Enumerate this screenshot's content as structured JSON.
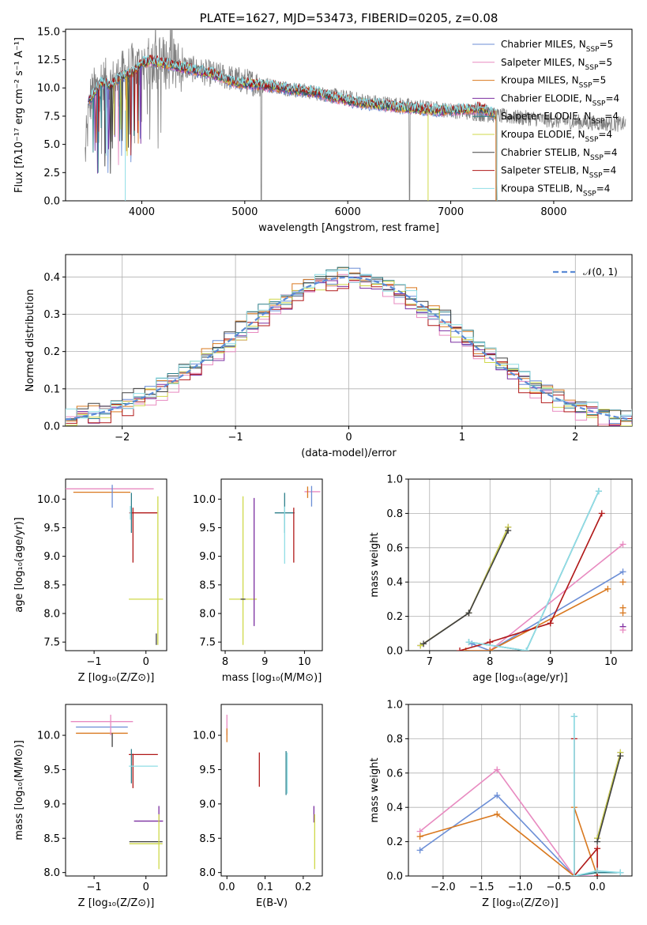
{
  "chart_data": [
    {
      "id": "spectrum",
      "type": "line",
      "title": "PLATE=1627, MJD=53473, FIBERID=0205, z=0.08",
      "xlabel": "wavelength [Angstrom, rest frame]",
      "ylabel": "Flux [fλ10⁻¹⁷ erg cm⁻² s⁻¹ A⁻¹]",
      "xlim": [
        3260,
        8760
      ],
      "ylim": [
        0,
        15.2
      ],
      "xticks": [
        4000,
        5000,
        6000,
        7000,
        8000
      ],
      "yticks": [
        0.0,
        2.5,
        5.0,
        7.5,
        10.0,
        12.5,
        15.0
      ],
      "ytick_labels": [
        "0.0",
        "2.5",
        "5.0",
        "7.5",
        "10.0",
        "12.5",
        "15.0"
      ],
      "legend_position": "right",
      "legend": [
        {
          "name": "Chabrier MILES, N",
          "sub": "SSP",
          "suffix": "=5",
          "color": "#6b8ed6"
        },
        {
          "name": "Salpeter MILES, N",
          "sub": "SSP",
          "suffix": "=5",
          "color": "#e88ac0"
        },
        {
          "name": "Kroupa MILES, N",
          "sub": "SSP",
          "suffix": "=5",
          "color": "#d9781e"
        },
        {
          "name": "Chabrier ELODIE, N",
          "sub": "SSP",
          "suffix": "=4",
          "color": "#7b2fa0"
        },
        {
          "name": "Salpeter ELODIE, N",
          "sub": "SSP",
          "suffix": "=4",
          "color": "#2d7f8a"
        },
        {
          "name": "Kroupa ELODIE, N",
          "sub": "SSP",
          "suffix": "=4",
          "color": "#cfd84a"
        },
        {
          "name": "Chabrier STELIB, N",
          "sub": "SSP",
          "suffix": "=4",
          "color": "#404040"
        },
        {
          "name": "Salpeter STELIB, N",
          "sub": "SSP",
          "suffix": "=4",
          "color": "#b01818"
        },
        {
          "name": "Kroupa STELIB, N",
          "sub": "SSP",
          "suffix": "=4",
          "color": "#8fdde6"
        }
      ],
      "model_envelope": {
        "x": [
          3500,
          3600,
          3700,
          3800,
          3900,
          4000,
          4100,
          4300,
          4500,
          4700,
          4900,
          5100,
          5300,
          5500,
          5700,
          5900,
          6100,
          6300,
          6500,
          6700,
          6900,
          7100,
          7300,
          7450
        ],
        "y": [
          9.0,
          10.5,
          10.2,
          11.0,
          11.3,
          12.2,
          12.4,
          12.0,
          11.6,
          11.2,
          10.5,
          10.3,
          10.1,
          9.8,
          9.6,
          9.1,
          8.7,
          8.5,
          8.3,
          8.1,
          8.0,
          8.1,
          8.2,
          7.5
        ]
      },
      "data_trend": {
        "x": [
          3450,
          3500,
          3600,
          3700,
          3800,
          3900,
          4000,
          4200,
          4400,
          4600,
          4800,
          5000,
          5200,
          5400,
          5600,
          5800,
          6000,
          6200,
          6400,
          6600,
          6800,
          7000,
          7200,
          7400,
          7600,
          7800,
          8000,
          8200,
          8400,
          8600,
          8700
        ],
        "y": [
          4.0,
          9.0,
          10.4,
          10.2,
          10.9,
          11.6,
          12.0,
          12.3,
          11.9,
          11.4,
          11.0,
          10.6,
          10.3,
          10.0,
          9.7,
          9.4,
          9.1,
          8.8,
          8.6,
          8.4,
          8.2,
          8.0,
          7.8,
          7.6,
          7.4,
          7.3,
          7.1,
          7.0,
          6.9,
          6.8,
          6.8
        ]
      }
    },
    {
      "id": "residuals",
      "type": "line",
      "xlabel": "(data-model)/error",
      "ylabel": "Normed distribution",
      "xlim": [
        -2.5,
        2.5
      ],
      "ylim": [
        0,
        0.46
      ],
      "xticks": [
        -2,
        -1,
        0,
        1,
        2
      ],
      "xtick_labels": [
        "−2",
        "−1",
        "0",
        "1",
        "2"
      ],
      "yticks": [
        0.0,
        0.1,
        0.2,
        0.3,
        0.4
      ],
      "ytick_labels": [
        "0.0",
        "0.1",
        "0.2",
        "0.3",
        "0.4"
      ],
      "grid": true,
      "legend_position": "top-right",
      "reference_curve": {
        "name": "𝒩(0, 1)",
        "color": "#5b8bd6",
        "style": "dashed"
      },
      "histogram_series": [
        {
          "color": "#6b8ed6",
          "shift": 0.004
        },
        {
          "color": "#e88ac0",
          "shift": -0.012
        },
        {
          "color": "#d9781e",
          "shift": 0.01
        },
        {
          "color": "#7b2fa0",
          "shift": -0.008
        },
        {
          "color": "#2d7f8a",
          "shift": 0.006
        },
        {
          "color": "#cfd84a",
          "shift": -0.004
        },
        {
          "color": "#404040",
          "shift": 0.012
        },
        {
          "color": "#b01818",
          "shift": -0.01
        },
        {
          "color": "#8fdde6",
          "shift": 0.008
        }
      ]
    },
    {
      "id": "age-vs-Z",
      "type": "scatter",
      "xlabel": "Z [log₁₀(Z/Z⊙)]",
      "ylabel": "age  [log₁₀(age/yr)]",
      "xlim": [
        -1.55,
        0.4
      ],
      "ylim": [
        7.35,
        10.35
      ],
      "xticks": [
        -1,
        0
      ],
      "xtick_labels": [
        "−1",
        "0"
      ],
      "yticks": [
        7.5,
        8.0,
        8.5,
        9.0,
        9.5,
        10.0
      ],
      "ytick_labels": [
        "7.5",
        "8.0",
        "8.5",
        "9.0",
        "9.5",
        "10.0"
      ],
      "points": [
        {
          "x": -0.7,
          "y": 10.18,
          "ex": 0.85,
          "ey": 0.0,
          "color": "#e88ac0"
        },
        {
          "x": -0.85,
          "y": 10.12,
          "ex": 0.55,
          "ey": 0.0,
          "color": "#d9781e"
        },
        {
          "x": -0.65,
          "y": 10.05,
          "ex": 0.0,
          "ey": 0.2,
          "color": "#6b8ed6"
        },
        {
          "x": -0.05,
          "y": 9.76,
          "ex": 0.27,
          "ey": 0.0,
          "color": "#b01818"
        },
        {
          "x": -0.25,
          "y": 9.37,
          "ex": 0.0,
          "ey": 0.48,
          "color": "#b01818"
        },
        {
          "x": -0.28,
          "y": 9.76,
          "ex": 0.0,
          "ey": 0.35,
          "color": "#2d7f8a"
        },
        {
          "x": -0.3,
          "y": 9.76,
          "ex": 0.0,
          "ey": 0.12,
          "color": "#8fdde6"
        },
        {
          "x": 0.23,
          "y": 8.75,
          "ex": 0.0,
          "ey": 1.3,
          "color": "#cfd84a"
        },
        {
          "x": 0.0,
          "y": 8.25,
          "ex": 0.33,
          "ey": 0.0,
          "color": "#cfd84a"
        },
        {
          "x": 0.2,
          "y": 7.55,
          "ex": 0.0,
          "ey": 0.1,
          "color": "#404040"
        }
      ]
    },
    {
      "id": "age-vs-mass",
      "type": "scatter",
      "xlabel": "mass [log₁₀(M/M⊙)]",
      "xlim": [
        7.9,
        10.45
      ],
      "ylim": [
        7.35,
        10.35
      ],
      "xticks": [
        8,
        9,
        10
      ],
      "yticks": [
        7.5,
        8.0,
        8.5,
        9.0,
        9.5,
        10.0
      ],
      "ytick_labels": [
        "7.5",
        "8.0",
        "8.5",
        "9.0",
        "9.5",
        "10.0"
      ],
      "points": [
        {
          "x": 8.45,
          "y": 8.75,
          "ex": 0.0,
          "ey": 1.3,
          "color": "#cfd84a"
        },
        {
          "x": 8.45,
          "y": 8.25,
          "ex": 0.35,
          "ey": 0.0,
          "color": "#cfd84a"
        },
        {
          "x": 8.45,
          "y": 8.25,
          "ex": 0.0,
          "ey": 0.0,
          "color": "#404040"
        },
        {
          "x": 8.73,
          "y": 8.9,
          "ex": 0.0,
          "ey": 1.12,
          "color": "#7b2fa0"
        },
        {
          "x": 9.5,
          "y": 9.76,
          "ex": 0.25,
          "ey": 0.0,
          "color": "#2d7f8a"
        },
        {
          "x": 9.5,
          "y": 9.76,
          "ex": 0.0,
          "ey": 0.35,
          "color": "#2d7f8a"
        },
        {
          "x": 9.5,
          "y": 9.37,
          "ex": 0.0,
          "ey": 0.5,
          "color": "#8fdde6"
        },
        {
          "x": 9.73,
          "y": 9.37,
          "ex": 0.0,
          "ey": 0.48,
          "color": "#b01818"
        },
        {
          "x": 10.2,
          "y": 10.13,
          "ex": 0.2,
          "ey": 0.0,
          "color": "#e88ac0"
        },
        {
          "x": 10.18,
          "y": 10.05,
          "ex": 0.0,
          "ey": 0.18,
          "color": "#6b8ed6"
        },
        {
          "x": 10.08,
          "y": 10.12,
          "ex": 0.0,
          "ey": 0.1,
          "color": "#d9781e"
        }
      ]
    },
    {
      "id": "weight-vs-age",
      "type": "line",
      "xlabel": "age  [log₁₀(age/yr)]",
      "ylabel": "mass weight",
      "xlim": [
        6.65,
        10.35
      ],
      "ylim": [
        0,
        1.0
      ],
      "xticks": [
        7,
        8,
        9,
        10
      ],
      "yticks": [
        0.0,
        0.2,
        0.4,
        0.6,
        0.8,
        1.0
      ],
      "ytick_labels": [
        "0.0",
        "0.2",
        "0.4",
        "0.6",
        "0.8",
        "1.0"
      ],
      "grid": true,
      "series": [
        {
          "color": "#6b8ed6",
          "x": [
            7.7,
            8.0,
            10.2
          ],
          "y": [
            0.04,
            0.0,
            0.46
          ]
        },
        {
          "color": "#e88ac0",
          "x": [
            7.6,
            8.0,
            10.2
          ],
          "y": [
            0.0,
            0.0,
            0.62
          ]
        },
        {
          "color": "#d9781e",
          "x": [
            7.6,
            8.0,
            9.95
          ],
          "y": [
            0.0,
            0.0,
            0.36
          ]
        },
        {
          "color": "#7b2fa0",
          "x": [
            6.85,
            7.65,
            8.3
          ],
          "y": [
            0.03,
            0.22,
            0.72
          ]
        },
        {
          "color": "#2d7f8a",
          "x": [
            7.65,
            8.6,
            9.8
          ],
          "y": [
            0.05,
            0.0,
            0.93
          ]
        },
        {
          "color": "#cfd84a",
          "x": [
            6.85,
            7.65,
            8.3
          ],
          "y": [
            0.03,
            0.22,
            0.72
          ]
        },
        {
          "color": "#404040",
          "x": [
            6.9,
            7.65,
            8.3
          ],
          "y": [
            0.04,
            0.22,
            0.7
          ]
        },
        {
          "color": "#b01818",
          "x": [
            7.5,
            8.0,
            9.0,
            9.85
          ],
          "y": [
            0.0,
            0.05,
            0.16,
            0.8
          ]
        },
        {
          "color": "#8fdde6",
          "x": [
            7.65,
            8.6,
            9.8
          ],
          "y": [
            0.05,
            0.0,
            0.93
          ]
        }
      ],
      "markers": [
        {
          "x": 10.2,
          "y": 0.25,
          "color": "#d9781e"
        },
        {
          "x": 10.2,
          "y": 0.4,
          "color": "#d9781e"
        },
        {
          "x": 10.2,
          "y": 0.14,
          "color": "#7b2fa0"
        },
        {
          "x": 10.2,
          "y": 0.12,
          "color": "#e88ac0"
        },
        {
          "x": 10.2,
          "y": 0.22,
          "color": "#d9781e"
        }
      ]
    },
    {
      "id": "mass-vs-Z",
      "type": "scatter",
      "xlabel": "Z [log₁₀(Z/Z⊙)]",
      "ylabel": "mass [log₁₀(M/M⊙)]",
      "xlim": [
        -1.55,
        0.4
      ],
      "ylim": [
        7.95,
        10.45
      ],
      "xticks": [
        -1,
        0
      ],
      "xtick_labels": [
        "−1",
        "0"
      ],
      "yticks": [
        8.0,
        8.5,
        9.0,
        9.5,
        10.0
      ],
      "ytick_labels": [
        "8.0",
        "8.5",
        "9.0",
        "9.5",
        "10.0"
      ],
      "points": [
        {
          "x": -0.85,
          "y": 10.2,
          "ex": 0.6,
          "ey": 0.0,
          "color": "#e88ac0"
        },
        {
          "x": -0.85,
          "y": 10.12,
          "ex": 0.5,
          "ey": 0.0,
          "color": "#6b8ed6"
        },
        {
          "x": -0.85,
          "y": 10.03,
          "ex": 0.5,
          "ey": 0.0,
          "color": "#d9781e"
        },
        {
          "x": -0.68,
          "y": 10.15,
          "ex": 0.0,
          "ey": 0.15,
          "color": "#e88ac0"
        },
        {
          "x": -0.65,
          "y": 9.93,
          "ex": 0.0,
          "ey": 0.1,
          "color": "#404040"
        },
        {
          "x": -0.05,
          "y": 9.72,
          "ex": 0.28,
          "ey": 0.0,
          "color": "#b01818"
        },
        {
          "x": -0.25,
          "y": 9.48,
          "ex": 0.0,
          "ey": 0.25,
          "color": "#b01818"
        },
        {
          "x": -0.28,
          "y": 9.55,
          "ex": 0.0,
          "ey": 0.25,
          "color": "#2d7f8a"
        },
        {
          "x": -0.05,
          "y": 9.55,
          "ex": 0.28,
          "ey": 0.0,
          "color": "#8fdde6"
        },
        {
          "x": 0.05,
          "y": 8.75,
          "ex": 0.28,
          "ey": 0.0,
          "color": "#7b2fa0"
        },
        {
          "x": 0.25,
          "y": 8.85,
          "ex": 0.0,
          "ey": 0.12,
          "color": "#7b2fa0"
        },
        {
          "x": 0.0,
          "y": 8.45,
          "ex": 0.32,
          "ey": 0.0,
          "color": "#404040"
        },
        {
          "x": 0.0,
          "y": 8.42,
          "ex": 0.32,
          "ey": 0.0,
          "color": "#cfd84a"
        },
        {
          "x": 0.25,
          "y": 8.45,
          "ex": 0.0,
          "ey": 0.4,
          "color": "#cfd84a"
        }
      ]
    },
    {
      "id": "ebv-vs-mass",
      "type": "scatter",
      "xlabel": "E(B-V)",
      "xlim": [
        -0.015,
        0.25
      ],
      "ylim": [
        7.95,
        10.45
      ],
      "xticks": [
        0.0,
        0.1,
        0.2
      ],
      "xtick_labels": [
        "0.0",
        "0.1",
        "0.2"
      ],
      "yticks": [
        8.0,
        8.5,
        9.0,
        9.5,
        10.0
      ],
      "ytick_labels": [
        "8.0",
        "8.5",
        "9.0",
        "9.5",
        "10.0"
      ],
      "points": [
        {
          "x": 0.0,
          "y": 10.15,
          "ex": 0.0,
          "ey": 0.15,
          "color": "#e88ac0"
        },
        {
          "x": 0.0,
          "y": 10.0,
          "ex": 0.0,
          "ey": 0.1,
          "color": "#d9781e"
        },
        {
          "x": 0.085,
          "y": 9.5,
          "ex": 0.0,
          "ey": 0.25,
          "color": "#b01818"
        },
        {
          "x": 0.155,
          "y": 9.45,
          "ex": 0.0,
          "ey": 0.32,
          "color": "#2d7f8a"
        },
        {
          "x": 0.158,
          "y": 9.45,
          "ex": 0.0,
          "ey": 0.3,
          "color": "#8fdde6"
        },
        {
          "x": 0.228,
          "y": 8.85,
          "ex": 0.0,
          "ey": 0.12,
          "color": "#7b2fa0"
        },
        {
          "x": 0.23,
          "y": 8.45,
          "ex": 0.0,
          "ey": 0.4,
          "color": "#cfd84a"
        }
      ]
    },
    {
      "id": "weight-vs-Z",
      "type": "line",
      "xlabel": "Z [log₁₀(Z/Z⊙)]",
      "ylabel": "mass weight",
      "xlim": [
        -2.45,
        0.45
      ],
      "ylim": [
        0,
        1.0
      ],
      "xticks": [
        -2.0,
        -1.5,
        -1.0,
        -0.5,
        0.0
      ],
      "xtick_labels": [
        "−2.0",
        "−1.5",
        "−1.0",
        "−0.5",
        "0.0"
      ],
      "yticks": [
        0.0,
        0.2,
        0.4,
        0.6,
        0.8,
        1.0
      ],
      "ytick_labels": [
        "0.0",
        "0.2",
        "0.4",
        "0.6",
        "0.8",
        "1.0"
      ],
      "grid": true,
      "series": [
        {
          "color": "#6b8ed6",
          "x": [
            -2.3,
            -1.3,
            -0.3,
            0.0
          ],
          "y": [
            0.15,
            0.47,
            0.0,
            0.0
          ]
        },
        {
          "color": "#e88ac0",
          "x": [
            -2.3,
            -1.3,
            -0.3,
            0.0
          ],
          "y": [
            0.26,
            0.62,
            0.0,
            0.0
          ]
        },
        {
          "color": "#d9781e",
          "x": [
            -2.3,
            -1.3,
            -0.3,
            -0.3,
            0.0
          ],
          "y": [
            0.23,
            0.36,
            0.0,
            0.4,
            0.0
          ]
        },
        {
          "color": "#7b2fa0",
          "x": [
            0.0,
            0.3
          ],
          "y": [
            0.22,
            0.72
          ]
        },
        {
          "color": "#2d7f8a",
          "x": [
            -0.3,
            -0.3,
            0.0,
            0.3
          ],
          "y": [
            0.93,
            0.0,
            0.02,
            0.02
          ]
        },
        {
          "color": "#cfd84a",
          "x": [
            0.0,
            0.3
          ],
          "y": [
            0.22,
            0.72
          ]
        },
        {
          "color": "#404040",
          "x": [
            0.0,
            0.3
          ],
          "y": [
            0.2,
            0.7
          ]
        },
        {
          "color": "#b01818",
          "x": [
            -0.3,
            -0.3,
            0.0,
            0.0
          ],
          "y": [
            0.8,
            0.0,
            0.16,
            0.0
          ]
        },
        {
          "color": "#8fdde6",
          "x": [
            -0.3,
            -0.3,
            0.0,
            0.3
          ],
          "y": [
            0.93,
            0.0,
            0.03,
            0.02
          ]
        }
      ]
    }
  ]
}
